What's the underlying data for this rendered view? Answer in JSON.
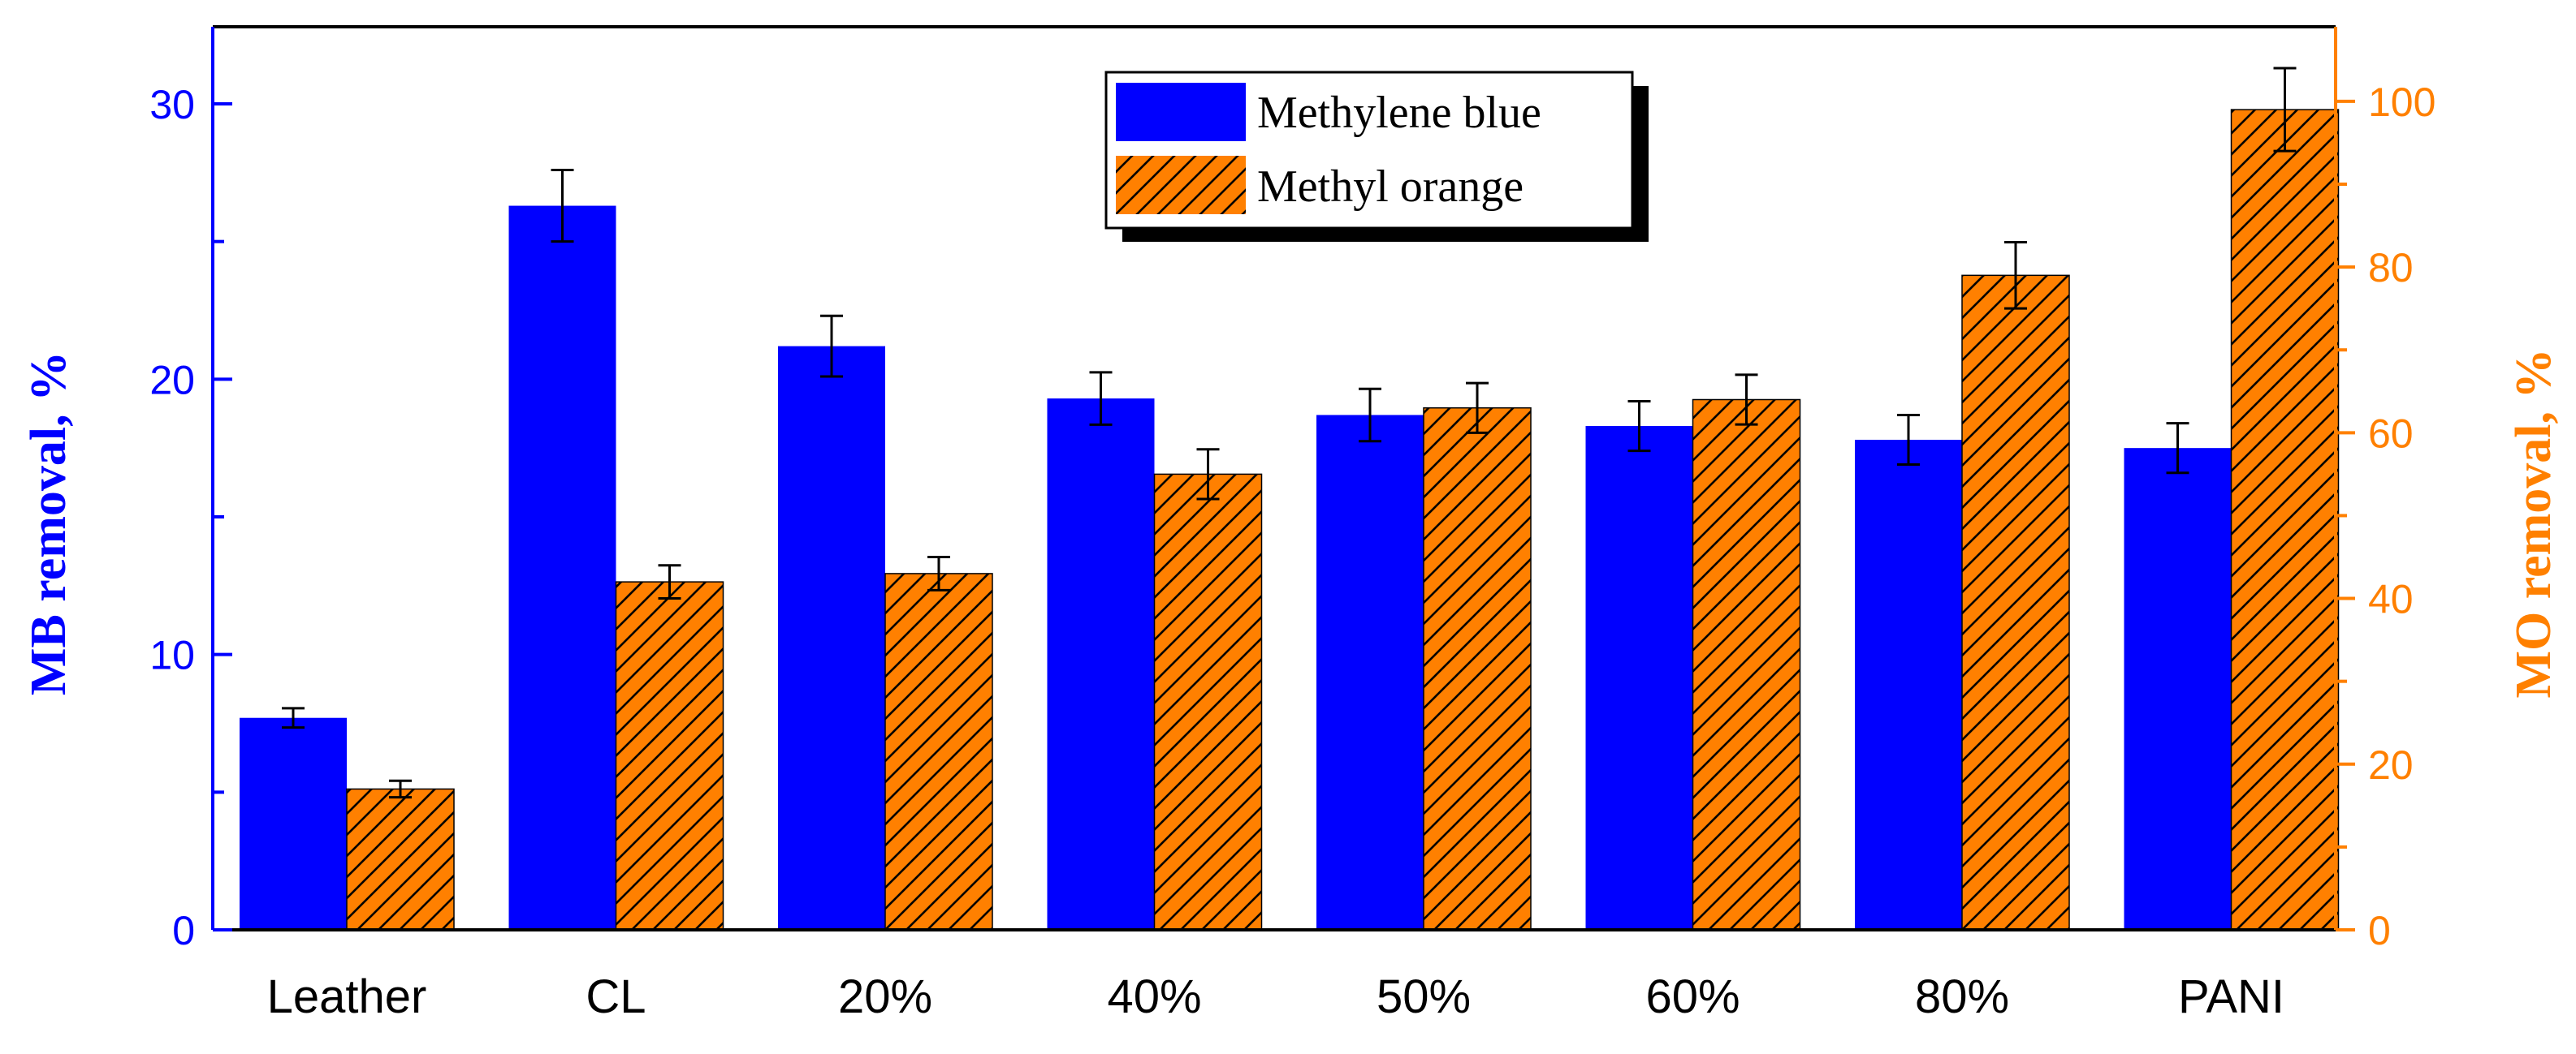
{
  "chart_data": {
    "type": "bar",
    "categories": [
      "Leather",
      "CL",
      "20%",
      "40%",
      "50%",
      "60%",
      "80%",
      "PANI"
    ],
    "series": [
      {
        "name": "Methylene blue",
        "axis": "left",
        "color": "#0000ff",
        "pattern": "solid",
        "values": [
          7.7,
          26.3,
          21.2,
          19.3,
          18.7,
          18.3,
          17.8,
          17.5
        ],
        "errors": [
          0.35,
          1.3,
          1.1,
          0.95,
          0.95,
          0.9,
          0.9,
          0.9
        ]
      },
      {
        "name": "Methyl orange",
        "axis": "right",
        "color": "#ff8000",
        "pattern": "hatched",
        "values": [
          17,
          42,
          43,
          55,
          63,
          64,
          79,
          99
        ],
        "errors": [
          1,
          2,
          2,
          3,
          3,
          3,
          4,
          5
        ]
      }
    ],
    "ylabel_left": "MB removal, %",
    "ylabel_right": "MO removal, %",
    "ylim_left": [
      0,
      32.8
    ],
    "ylim_right": [
      0,
      109
    ],
    "yticks_left": [
      "0",
      "10",
      "20",
      "30"
    ],
    "yticks_right": [
      "0",
      "20",
      "40",
      "60",
      "80",
      "100"
    ],
    "left_axis_color": "#0000ff",
    "right_axis_color": "#ff8000",
    "legend_position": "top-center",
    "grid": false
  }
}
